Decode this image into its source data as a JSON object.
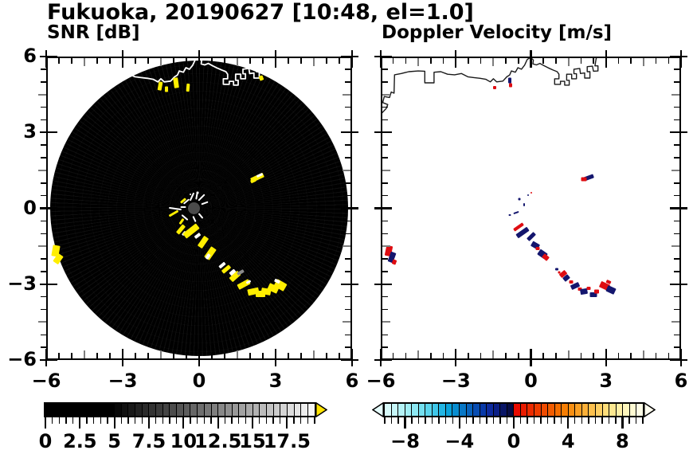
{
  "title": "Fukuoka, 20190627 [10:48, el=1.0]",
  "panels": {
    "snr": {
      "title": "SNR [dB]",
      "x_tick_labels": [
        "−6",
        "−3",
        "0",
        "3",
        "6"
      ],
      "y_tick_labels": [
        "6",
        "3",
        "0",
        "−3",
        "−6"
      ]
    },
    "doppler": {
      "title": "Doppler Velocity [m/s]",
      "x_tick_labels": [
        "−6",
        "−3",
        "0",
        "3",
        "6"
      ]
    }
  },
  "chart_data": {
    "type": "heatmap",
    "subtype": "dual-panel radar PPI scan",
    "site": "Fukuoka",
    "date": "20190627",
    "time": "10:48",
    "elevation_deg": 1.0,
    "axis": {
      "x_range": [
        -6,
        6
      ],
      "y_range": [
        -6,
        6
      ],
      "major_ticks": [
        -6,
        -3,
        0,
        3,
        6
      ],
      "medium_ticks": [
        -4.5,
        -1.5,
        1.5,
        4.5
      ],
      "minor_step": 0.5,
      "grid": false
    },
    "radar_disk": {
      "center_xy": [
        0,
        0
      ],
      "radius": 5.85,
      "color": "#000000"
    },
    "snr_colorbar": {
      "min": 0,
      "max": 19.5,
      "step": 0.5,
      "style": "grayscale black to white",
      "black_until": 5,
      "ramp_end_gray": 246,
      "overflow_arrow_color": "#ffe400",
      "tick_values": [
        0,
        2.5,
        5,
        7.5,
        10,
        12.5,
        15,
        17.5
      ],
      "tick_labels": [
        "0",
        "2.5",
        "5",
        "7.5",
        "10",
        "12.5",
        "15",
        "17.5"
      ]
    },
    "doppler_colorbar": {
      "min": -9.5,
      "max": 9.5,
      "step": 0.5,
      "tick_values": [
        -8,
        -4,
        0,
        4,
        8
      ],
      "tick_labels": [
        "−8",
        "−4",
        "0",
        "4",
        "8"
      ],
      "underflow_arrow_color": "#e6fdfd",
      "overflow_arrow_color": "#fffef0",
      "negative_colors": [
        "#d8fbfb",
        "#c6f7f9",
        "#b4f3f7",
        "#a0eef5",
        "#8ce8f3",
        "#74e0f0",
        "#5ad5ed",
        "#3ec7e9",
        "#22b5e3",
        "#0aa2da",
        "#088dd0",
        "#0877c6",
        "#0862bc",
        "#084db2",
        "#0839a8",
        "#0d2a9e",
        "#0b1f86",
        "#091566",
        "#070c44"
      ],
      "positive_colors": [
        "#e80b00",
        "#ea1b00",
        "#ec2b00",
        "#ee3b00",
        "#f04b00",
        "#f25c00",
        "#f46d00",
        "#f67e04",
        "#f88f12",
        "#faa024",
        "#fbb038",
        "#fcc04e",
        "#fdcf64",
        "#fedd7a",
        "#fee890",
        "#fff0a6",
        "#fff6bc",
        "#fffad2",
        "#fffde6"
      ]
    },
    "coastline_xy": [
      [
        -6.0,
        3.72
      ],
      [
        -5.78,
        3.95
      ],
      [
        -5.72,
        4.1
      ],
      [
        -5.92,
        4.18
      ],
      [
        -5.86,
        4.42
      ],
      [
        -5.65,
        4.38
      ],
      [
        -5.58,
        4.6
      ],
      [
        -5.47,
        4.55
      ],
      [
        -5.45,
        5.28
      ],
      [
        -5.18,
        5.33
      ],
      [
        -4.88,
        5.4
      ],
      [
        -4.5,
        5.43
      ],
      [
        -4.24,
        5.42
      ],
      [
        -4.24,
        4.96
      ],
      [
        -3.87,
        4.96
      ],
      [
        -3.87,
        5.38
      ],
      [
        -3.6,
        5.4
      ],
      [
        -3.33,
        5.3
      ],
      [
        -3.05,
        5.28
      ],
      [
        -2.78,
        5.33
      ],
      [
        -2.52,
        5.2
      ],
      [
        -2.28,
        5.17
      ],
      [
        -2.03,
        5.14
      ],
      [
        -1.8,
        5.1
      ],
      [
        -1.62,
        5.0
      ],
      [
        -1.5,
        5.12
      ],
      [
        -1.37,
        5.0
      ],
      [
        -1.12,
        5.03
      ],
      [
        -0.96,
        5.2
      ],
      [
        -0.85,
        5.27
      ],
      [
        -0.78,
        5.43
      ],
      [
        -0.62,
        5.38
      ],
      [
        -0.52,
        5.56
      ],
      [
        -0.38,
        5.5
      ],
      [
        -0.25,
        5.66
      ],
      [
        -0.15,
        5.88
      ],
      [
        -0.02,
        5.97
      ],
      [
        0.1,
        5.86
      ],
      [
        0.08,
        5.71
      ],
      [
        0.22,
        5.67
      ],
      [
        0.36,
        5.73
      ],
      [
        0.52,
        5.64
      ],
      [
        0.7,
        5.55
      ],
      [
        0.9,
        5.46
      ],
      [
        1.05,
        5.4
      ],
      [
        1.12,
        5.3
      ],
      [
        1.12,
        5.12
      ],
      [
        0.95,
        5.12
      ],
      [
        0.95,
        4.9
      ],
      [
        1.18,
        4.9
      ],
      [
        1.18,
        5.02
      ],
      [
        1.35,
        5.02
      ],
      [
        1.35,
        4.87
      ],
      [
        1.53,
        4.87
      ],
      [
        1.53,
        5.06
      ],
      [
        1.43,
        5.06
      ],
      [
        1.43,
        5.3
      ],
      [
        1.63,
        5.3
      ],
      [
        1.63,
        5.12
      ],
      [
        1.82,
        5.12
      ],
      [
        1.82,
        5.32
      ],
      [
        1.72,
        5.32
      ],
      [
        1.72,
        5.5
      ],
      [
        1.95,
        5.53
      ],
      [
        1.98,
        5.33
      ],
      [
        2.15,
        5.35
      ],
      [
        2.15,
        5.15
      ],
      [
        2.36,
        5.15
      ],
      [
        2.36,
        5.4
      ],
      [
        2.25,
        5.4
      ],
      [
        2.25,
        5.6
      ],
      [
        2.46,
        5.62
      ],
      [
        2.5,
        5.42
      ],
      [
        2.68,
        5.43
      ],
      [
        2.68,
        5.63
      ],
      [
        2.56,
        5.63
      ],
      [
        2.6,
        5.88
      ],
      [
        2.64,
        6.05
      ]
    ],
    "echoes_snr": [
      [
        -1.52,
        4.85,
        5,
        11,
        10,
        "y"
      ],
      [
        -1.28,
        4.72,
        4,
        7,
        0,
        "y"
      ],
      [
        -0.92,
        4.95,
        6,
        13,
        -8,
        "y"
      ],
      [
        -0.45,
        4.78,
        4,
        10,
        5,
        "y"
      ],
      [
        2.44,
        5.15,
        5,
        6,
        -20,
        "y"
      ],
      [
        2.28,
        1.22,
        17,
        6,
        -25,
        "y"
      ],
      [
        2.12,
        1.08,
        7,
        4,
        -25,
        "y"
      ],
      [
        2.38,
        1.32,
        8,
        3,
        -25,
        "w"
      ],
      [
        -5.62,
        -1.7,
        9,
        14,
        10,
        "y"
      ],
      [
        -5.52,
        -2.0,
        8,
        12,
        35,
        "y"
      ],
      [
        -1.0,
        -0.22,
        13,
        3,
        -30,
        "y"
      ],
      [
        -0.7,
        -0.52,
        8,
        3,
        -55,
        "y"
      ],
      [
        -0.62,
        0.3,
        8,
        3,
        -40,
        "y"
      ],
      [
        -0.72,
        -0.82,
        13,
        5,
        -50,
        "y"
      ],
      [
        -0.6,
        -0.98,
        6,
        3,
        -50,
        "w"
      ],
      [
        -0.3,
        -0.9,
        21,
        8,
        -38,
        "y"
      ],
      [
        -0.05,
        -1.08,
        8,
        4,
        -38,
        "w"
      ],
      [
        0.15,
        -1.33,
        15,
        7,
        -55,
        "y"
      ],
      [
        0.45,
        -1.78,
        16,
        8,
        -55,
        "y"
      ],
      [
        0.33,
        -1.92,
        7,
        4,
        -55,
        "w"
      ],
      [
        0.9,
        -2.25,
        9,
        4,
        -40,
        "w"
      ],
      [
        1.05,
        -2.4,
        12,
        5,
        -40,
        "y"
      ],
      [
        1.3,
        -2.55,
        8,
        5,
        -40,
        "w"
      ],
      [
        1.42,
        -2.68,
        14,
        7,
        -42,
        "y"
      ],
      [
        1.62,
        -2.52,
        9,
        4,
        -30,
        "g"
      ],
      [
        1.75,
        -3.02,
        16,
        7,
        -28,
        "y"
      ],
      [
        1.95,
        -2.9,
        6,
        3,
        -28,
        "w"
      ],
      [
        2.12,
        -3.28,
        14,
        8,
        -12,
        "y"
      ],
      [
        2.4,
        -3.38,
        12,
        8,
        0,
        "y"
      ],
      [
        2.62,
        -3.3,
        12,
        8,
        10,
        "y"
      ],
      [
        2.9,
        -3.18,
        13,
        9,
        25,
        "y"
      ],
      [
        3.18,
        -3.05,
        14,
        10,
        30,
        "y"
      ],
      [
        3.06,
        -2.88,
        7,
        4,
        25,
        "w"
      ]
    ],
    "echoes_doppler": [
      [
        -1.45,
        4.78,
        4,
        4,
        0,
        "R"
      ],
      [
        -0.85,
        5.05,
        4,
        7,
        0,
        "B"
      ],
      [
        -0.82,
        4.88,
        4,
        5,
        0,
        "R"
      ],
      [
        2.32,
        1.22,
        13,
        5,
        -20,
        "B"
      ],
      [
        2.12,
        1.15,
        7,
        5,
        0,
        "R"
      ],
      [
        -5.68,
        -1.68,
        8,
        13,
        12,
        "R"
      ],
      [
        -5.55,
        -1.95,
        7,
        13,
        20,
        "B"
      ],
      [
        -5.45,
        -2.12,
        5,
        6,
        20,
        "R"
      ],
      [
        -0.45,
        0.35,
        3,
        3,
        0,
        "B"
      ],
      [
        -0.28,
        0.15,
        2,
        4,
        0,
        "B"
      ],
      [
        -0.6,
        -0.18,
        7,
        2,
        -20,
        "B"
      ],
      [
        -0.85,
        -0.28,
        3,
        2,
        0,
        "B"
      ],
      [
        -0.12,
        0.52,
        2,
        2,
        0,
        "B"
      ],
      [
        0.02,
        0.6,
        2,
        2,
        0,
        "R"
      ],
      [
        -0.5,
        -0.75,
        14,
        4,
        -35,
        "R"
      ],
      [
        -0.35,
        -0.95,
        17,
        6,
        -35,
        "B"
      ],
      [
        0.0,
        -1.12,
        12,
        5,
        -45,
        "B"
      ],
      [
        0.18,
        -1.45,
        7,
        10,
        -60,
        "B"
      ],
      [
        0.28,
        -1.6,
        5,
        4,
        0,
        "R"
      ],
      [
        0.45,
        -1.82,
        8,
        11,
        -55,
        "B"
      ],
      [
        0.58,
        -1.95,
        6,
        8,
        -50,
        "R"
      ],
      [
        1.02,
        -2.4,
        4,
        3,
        0,
        "B"
      ],
      [
        1.12,
        -2.52,
        3,
        3,
        0,
        "R"
      ],
      [
        1.3,
        -2.6,
        9,
        6,
        -40,
        "R"
      ],
      [
        1.42,
        -2.75,
        8,
        6,
        -40,
        "B"
      ],
      [
        1.6,
        -2.92,
        5,
        4,
        0,
        "R"
      ],
      [
        1.78,
        -3.08,
        11,
        6,
        -25,
        "B"
      ],
      [
        1.95,
        -3.2,
        5,
        4,
        0,
        "R"
      ],
      [
        2.12,
        -3.3,
        9,
        7,
        -10,
        "B"
      ],
      [
        2.3,
        -3.18,
        5,
        4,
        0,
        "R"
      ],
      [
        2.5,
        -3.42,
        9,
        6,
        0,
        "B"
      ],
      [
        2.62,
        -3.28,
        6,
        5,
        0,
        "R"
      ],
      [
        2.95,
        -3.08,
        12,
        8,
        25,
        "R"
      ],
      [
        3.2,
        -3.22,
        11,
        8,
        25,
        "B"
      ],
      [
        3.1,
        -2.92,
        6,
        4,
        25,
        "R"
      ]
    ],
    "center_artifacts": {
      "dot": [
        -0.2,
        0.0,
        7.5
      ],
      "streaks": [
        [
          -0.95,
          -0.02,
          16,
          2,
          8
        ],
        [
          -0.5,
          0.28,
          9,
          2,
          -40
        ],
        [
          -0.28,
          0.45,
          11,
          2,
          -65
        ],
        [
          -0.1,
          0.5,
          9,
          2,
          -80
        ],
        [
          0.08,
          0.42,
          11,
          2,
          -45
        ],
        [
          0.22,
          0.2,
          9,
          2,
          -20
        ],
        [
          -0.55,
          -0.35,
          10,
          2,
          40
        ],
        [
          -0.2,
          -0.42,
          8,
          2,
          65
        ],
        [
          0.05,
          -0.3,
          8,
          2,
          50
        ],
        [
          -0.62,
          0.05,
          7,
          2,
          0
        ],
        [
          -0.05,
          0.62,
          3,
          3,
          0
        ],
        [
          -0.35,
          0.55,
          2,
          2,
          0
        ]
      ]
    }
  },
  "colors": {
    "yellow_echo": "#ffee00",
    "white": "#ffffff",
    "gray_echo": "#8a8a8a",
    "red_echo": "#df0d12",
    "navy_echo": "#14166e",
    "coast_snr": "#ffffff",
    "coast_doppler": "#1a1a1a",
    "center_dot": "#4b4b4b",
    "tick_gray": "#7d7d7d",
    "text": "#000000"
  }
}
